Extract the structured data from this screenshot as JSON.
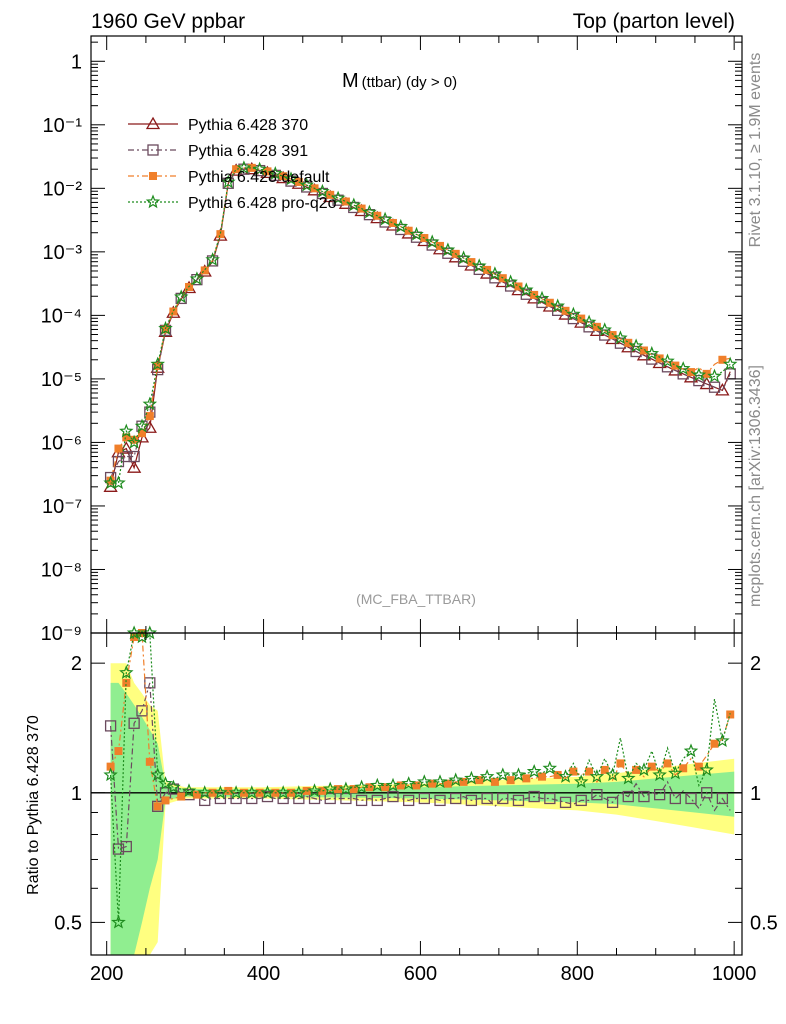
{
  "header": {
    "left": "1960 GeV ppbar",
    "right": "Top (parton level)"
  },
  "side_text": {
    "rivet": "Rivet 3.1.10, ≥ 1.9M events",
    "mcplots": "mcplots.cern.ch [arXiv:1306.3436]"
  },
  "chart_data": [
    {
      "type": "line",
      "title_main": "M",
      "title_sub": "(ttbar) (dy > 0)",
      "watermark": "(MC_FBA_TTBAR)",
      "xlim": [
        180,
        1010
      ],
      "y_scale": "log",
      "ylim": [
        1e-09,
        2.5
      ],
      "y_tick_labels": [
        "1",
        "10⁻¹",
        "10⁻²",
        "10⁻³",
        "10⁻⁴",
        "10⁻⁵",
        "10⁻⁶",
        "10⁻⁷",
        "10⁻⁸",
        "10⁻⁹"
      ],
      "legend": {
        "placement": "top-left",
        "entries": [
          {
            "label": "Pythia 6.428 370",
            "color": "#8b1a1a",
            "marker": "open-triangle",
            "style": "solid"
          },
          {
            "label": "Pythia 6.428 391",
            "color": "#6b4a5e",
            "marker": "open-square",
            "style": "dash-dot"
          },
          {
            "label": "Pythia 6.428 default",
            "color": "#f07f2a",
            "marker": "filled-square",
            "style": "dash-dot"
          },
          {
            "label": "Pythia 6.428 pro-q2o",
            "color": "#1e8c1e",
            "marker": "star",
            "style": "dotted"
          }
        ]
      },
      "x": [
        205,
        215,
        225,
        235,
        245,
        255,
        265,
        275,
        285,
        295,
        305,
        315,
        325,
        335,
        345,
        355,
        365,
        375,
        385,
        395,
        405,
        415,
        425,
        435,
        445,
        455,
        465,
        475,
        485,
        495,
        505,
        515,
        525,
        535,
        545,
        555,
        565,
        575,
        585,
        595,
        605,
        615,
        625,
        635,
        645,
        655,
        665,
        675,
        685,
        695,
        705,
        715,
        725,
        735,
        745,
        755,
        765,
        775,
        785,
        795,
        805,
        815,
        825,
        835,
        845,
        855,
        865,
        875,
        885,
        895,
        905,
        915,
        925,
        935,
        945,
        955,
        965,
        975,
        985,
        995
      ],
      "series": [
        {
          "name": "Pythia 6.428 370",
          "values": [
            2e-07,
            7e-07,
            8e-07,
            4e-07,
            1.2e-06,
            1.7e-06,
            1.5e-05,
            5.5e-05,
            0.00011,
            0.00018,
            0.00027,
            0.00036,
            0.00049,
            0.0007,
            0.0018,
            0.012,
            0.019,
            0.02,
            0.02,
            0.019,
            0.0175,
            0.016,
            0.0145,
            0.013,
            0.0118,
            0.0105,
            0.0093,
            0.0083,
            0.0073,
            0.0065,
            0.0057,
            0.005,
            0.0044,
            0.00385,
            0.0034,
            0.00295,
            0.0026,
            0.00225,
            0.00195,
            0.0017,
            0.00148,
            0.00128,
            0.0011,
            0.00095,
            0.00082,
            0.00071,
            0.00061,
            0.00053,
            0.000455,
            0.00039,
            0.000335,
            0.00029,
            0.00025,
            0.000215,
            0.000185,
            0.00016,
            0.000138,
            0.00012,
            0.000103,
            8.9e-05,
            7.7e-05,
            6.6e-05,
            5.7e-05,
            4.9e-05,
            4.25e-05,
            3.65e-05,
            3.15e-05,
            2.7e-05,
            2.35e-05,
            2.05e-05,
            1.78e-05,
            1.55e-05,
            1.36e-05,
            1.2e-05,
            1.06e-05,
            9.4e-06,
            8.3e-06,
            7.4e-06,
            6.6e-06,
            1.3e-05
          ]
        },
        {
          "name": "Pythia 6.428 391",
          "values": [
            2.8e-07,
            5e-07,
            6e-07,
            6e-07,
            1.8e-06,
            3e-06,
            1.4e-05,
            5.8e-05,
            0.00011,
            0.000185,
            0.000275,
            0.000365,
            0.0005,
            0.00072,
            0.0018,
            0.012,
            0.019,
            0.02,
            0.02,
            0.019,
            0.0175,
            0.016,
            0.0145,
            0.013,
            0.0118,
            0.0105,
            0.0093,
            0.0083,
            0.0073,
            0.0065,
            0.0057,
            0.005,
            0.0044,
            0.00385,
            0.0034,
            0.00295,
            0.0026,
            0.00225,
            0.00195,
            0.0017,
            0.00148,
            0.00128,
            0.0011,
            0.00095,
            0.00082,
            0.00071,
            0.00061,
            0.00053,
            0.000455,
            0.00039,
            0.000335,
            0.00029,
            0.00025,
            0.000215,
            0.000185,
            0.00016,
            0.000138,
            0.00012,
            0.000103,
            8.9e-05,
            7.7e-05,
            6.6e-05,
            5.7e-05,
            4.9e-05,
            4.25e-05,
            3.65e-05,
            3.15e-05,
            2.7e-05,
            2.35e-05,
            2.05e-05,
            1.78e-05,
            1.55e-05,
            1.36e-05,
            1.2e-05,
            1.06e-05,
            9.4e-06,
            8.3e-06,
            7.4e-06,
            6.6e-06,
            1.2e-05
          ]
        },
        {
          "name": "Pythia 6.428 default",
          "values": [
            2.5e-07,
            8e-07,
            1.2e-06,
            1.1e-06,
            1.4e-06,
            2.6e-06,
            1.6e-05,
            6e-05,
            0.000115,
            0.00019,
            0.00028,
            0.00037,
            0.00051,
            0.00074,
            0.0019,
            0.0125,
            0.02,
            0.021,
            0.021,
            0.02,
            0.0185,
            0.017,
            0.0155,
            0.014,
            0.0126,
            0.0112,
            0.01,
            0.0089,
            0.0079,
            0.007,
            0.0062,
            0.00545,
            0.0048,
            0.0042,
            0.0037,
            0.00325,
            0.00285,
            0.0025,
            0.00215,
            0.00188,
            0.00165,
            0.00143,
            0.00124,
            0.00107,
            0.00093,
            0.0008,
            0.00069,
            0.0006,
            0.00052,
            0.000445,
            0.000385,
            0.00033,
            0.000285,
            0.000245,
            0.00021,
            0.000182,
            0.000158,
            0.000137,
            0.000118,
            0.000102,
            8.9e-05,
            7.7e-05,
            6.6e-05,
            5.7e-05,
            4.9e-05,
            4.25e-05,
            3.7e-05,
            3.2e-05,
            2.8e-05,
            2.4e-05,
            2.1e-05,
            1.85e-05,
            1.62e-05,
            1.42e-05,
            1.28e-05,
            1.5e-05,
            1.2e-05,
            1.7e-05,
            2e-05,
            2.1e-05
          ]
        },
        {
          "name": "Pythia 6.428 pro-q2o",
          "values": [
            2.3e-07,
            2.3e-07,
            1.5e-06,
            1e-06,
            1.8e-06,
            4e-06,
            1.7e-05,
            6.2e-05,
            0.000118,
            0.000195,
            0.000285,
            0.000375,
            0.00052,
            0.00075,
            0.00195,
            0.0125,
            0.02,
            0.021,
            0.021,
            0.02,
            0.0185,
            0.017,
            0.0155,
            0.014,
            0.0126,
            0.0112,
            0.01,
            0.0089,
            0.0079,
            0.007,
            0.0062,
            0.00545,
            0.0048,
            0.0042,
            0.0037,
            0.00325,
            0.00285,
            0.0025,
            0.00215,
            0.00188,
            0.00165,
            0.00143,
            0.00124,
            0.00107,
            0.00093,
            0.0008,
            0.00069,
            0.0006,
            0.00052,
            0.00045,
            0.00039,
            0.000335,
            0.00029,
            0.00025,
            0.000215,
            0.000185,
            0.00016,
            0.00014,
            0.00012,
            0.000104,
            9e-05,
            7.8e-05,
            6.8e-05,
            5.9e-05,
            5.1e-05,
            4.4e-05,
            3.8e-05,
            3.3e-05,
            2.9e-05,
            2.5e-05,
            2.2e-05,
            1.9e-05,
            1.65e-05,
            1.45e-05,
            1.3e-05,
            1.15e-05,
            1e-05,
            1.1e-05,
            1.3e-05,
            1.7e-05
          ]
        }
      ]
    },
    {
      "type": "line",
      "ylabel": "Ratio to Pythia 6.428 370",
      "y_scale": "log",
      "ylim": [
        0.42,
        2.35
      ],
      "y_tick_labels": [
        "0.5",
        "1",
        "2"
      ],
      "xlim": [
        180,
        1010
      ],
      "x_tick_labels": [
        "200",
        "400",
        "600",
        "800",
        "1000"
      ],
      "bands": {
        "inner_color": "#90ee90",
        "outer_color": "#ffff80",
        "x": [
          205,
          215,
          225,
          235,
          245,
          255,
          265,
          275,
          300,
          400,
          500,
          600,
          700,
          750,
          800,
          850,
          900,
          950,
          1000
        ],
        "inner_half": [
          0.8,
          0.8,
          0.7,
          0.6,
          0.5,
          0.4,
          0.3,
          0.04,
          0.02,
          0.02,
          0.025,
          0.03,
          0.04,
          0.045,
          0.05,
          0.06,
          0.08,
          0.1,
          0.12
        ],
        "outer_half": [
          1.0,
          1.0,
          1.0,
          0.8,
          0.7,
          0.6,
          0.55,
          0.06,
          0.03,
          0.03,
          0.04,
          0.05,
          0.07,
          0.08,
          0.09,
          0.11,
          0.14,
          0.17,
          0.2
        ]
      },
      "series": [
        {
          "name": "Pythia 6.428 391",
          "values": [
            1.43,
            0.74,
            0.75,
            1.45,
            1.55,
            1.8,
            0.93,
            1.0,
            1.02,
            1.0,
            0.99,
            0.98,
            0.96,
            0.97,
            0.97,
            0.97,
            0.97,
            0.97,
            0.97,
            0.97,
            0.98,
            0.97,
            0.97,
            0.97,
            0.97,
            0.98,
            0.97,
            0.96,
            0.97,
            0.97,
            0.97,
            0.97,
            0.96,
            0.97,
            0.96,
            0.97,
            0.98,
            0.97,
            0.96,
            0.97,
            0.97,
            0.97,
            0.96,
            0.97,
            0.97,
            0.98,
            0.96,
            0.97,
            0.97,
            0.93,
            0.97,
            0.97,
            0.96,
            0.97,
            0.98,
            0.97,
            0.97,
            0.96,
            0.95,
            0.94,
            0.96,
            0.96,
            0.99,
            0.97,
            0.95,
            1.0,
            0.98,
            1.05,
            0.98,
            1.0,
            0.99,
            1.06,
            0.97,
            1.01,
            0.97,
            0.92,
            1.0,
            0.91,
            0.97,
            0.91
          ]
        },
        {
          "name": "Pythia 6.428 default",
          "values": [
            1.15,
            1.25,
            1.8,
            2.3,
            2.35,
            1.18,
            0.93,
            0.96,
            0.97,
            0.98,
            0.99,
            0.99,
            1.0,
            1.0,
            1.01,
            1.01,
            1.0,
            1.0,
            1.0,
            1.0,
            1.0,
            1.0,
            1.0,
            1.0,
            1.0,
            1.01,
            1.01,
            1.01,
            1.01,
            1.02,
            1.02,
            1.02,
            1.03,
            1.03,
            1.03,
            1.03,
            1.03,
            1.04,
            1.04,
            1.04,
            1.04,
            1.05,
            1.05,
            1.05,
            1.06,
            1.06,
            1.06,
            1.07,
            1.07,
            1.06,
            1.08,
            1.07,
            1.08,
            1.08,
            1.08,
            1.09,
            1.09,
            1.1,
            1.08,
            1.12,
            1.1,
            1.12,
            1.06,
            1.13,
            1.07,
            1.17,
            1.1,
            1.13,
            1.09,
            1.15,
            1.12,
            1.17,
            1.1,
            1.14,
            1.2,
            1.15,
            1.22,
            1.3,
            1.33,
            1.52
          ]
        },
        {
          "name": "Pythia 6.428 pro-q2o",
          "values": [
            1.1,
            0.5,
            1.9,
            2.35,
            2.3,
            2.35,
            1.1,
            1.05,
            1.03,
            1.02,
            1.01,
            1.0,
            1.0,
            1.0,
            1.0,
            1.0,
            1.0,
            1.0,
            1.0,
            1.0,
            1.0,
            1.0,
            1.0,
            1.0,
            1.0,
            1.01,
            1.01,
            1.01,
            1.02,
            1.02,
            1.02,
            1.03,
            1.03,
            1.03,
            1.04,
            1.04,
            1.04,
            1.05,
            1.05,
            1.05,
            1.06,
            1.06,
            1.06,
            1.07,
            1.07,
            1.07,
            1.08,
            1.08,
            1.09,
            1.08,
            1.1,
            1.1,
            1.1,
            1.11,
            1.12,
            1.11,
            1.14,
            1.11,
            1.09,
            1.17,
            1.06,
            1.19,
            1.09,
            1.2,
            1.1,
            1.34,
            1.08,
            1.17,
            1.13,
            1.25,
            1.1,
            1.27,
            1.11,
            1.2,
            1.25,
            1.04,
            1.13,
            1.65,
            1.32,
            1.53
          ]
        }
      ]
    }
  ]
}
